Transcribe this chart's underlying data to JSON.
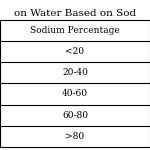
{
  "title": "on Water Based on Sod",
  "header": "Sodium Percentage",
  "rows": [
    "<20",
    "20-40",
    "40-60",
    "60-80",
    ">80"
  ],
  "bg_color": "#ffffff",
  "text_color": "#000000",
  "header_fontsize": 6.5,
  "row_fontsize": 6.5,
  "title_fontsize": 7.5,
  "figsize": [
    1.5,
    1.5
  ],
  "dpi": 100
}
